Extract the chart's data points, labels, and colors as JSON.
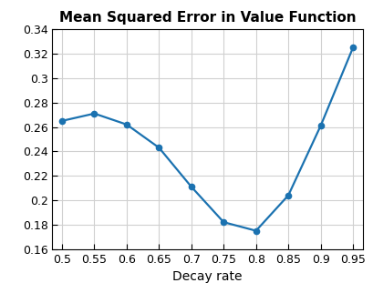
{
  "x": [
    0.5,
    0.55,
    0.6,
    0.65,
    0.7,
    0.75,
    0.8,
    0.85,
    0.9,
    0.95
  ],
  "y": [
    0.265,
    0.271,
    0.262,
    0.243,
    0.211,
    0.182,
    0.175,
    0.204,
    0.261,
    0.325
  ],
  "line_color": "#1b72b0",
  "marker": "o",
  "marker_size": 4.5,
  "line_width": 1.6,
  "title": "Mean Squared Error in Value Function",
  "xlabel": "Decay rate",
  "xlim": [
    0.485,
    0.965
  ],
  "ylim": [
    0.16,
    0.34
  ],
  "xticks": [
    0.5,
    0.55,
    0.6,
    0.65,
    0.7,
    0.75,
    0.8,
    0.85,
    0.9,
    0.95
  ],
  "yticks": [
    0.16,
    0.18,
    0.2,
    0.22,
    0.24,
    0.26,
    0.28,
    0.3,
    0.32,
    0.34
  ],
  "grid_color": "#d0d0d0",
  "title_fontsize": 11,
  "label_fontsize": 10,
  "tick_fontsize": 9,
  "fig_width": 4.1,
  "fig_height": 3.22,
  "dpi": 100
}
